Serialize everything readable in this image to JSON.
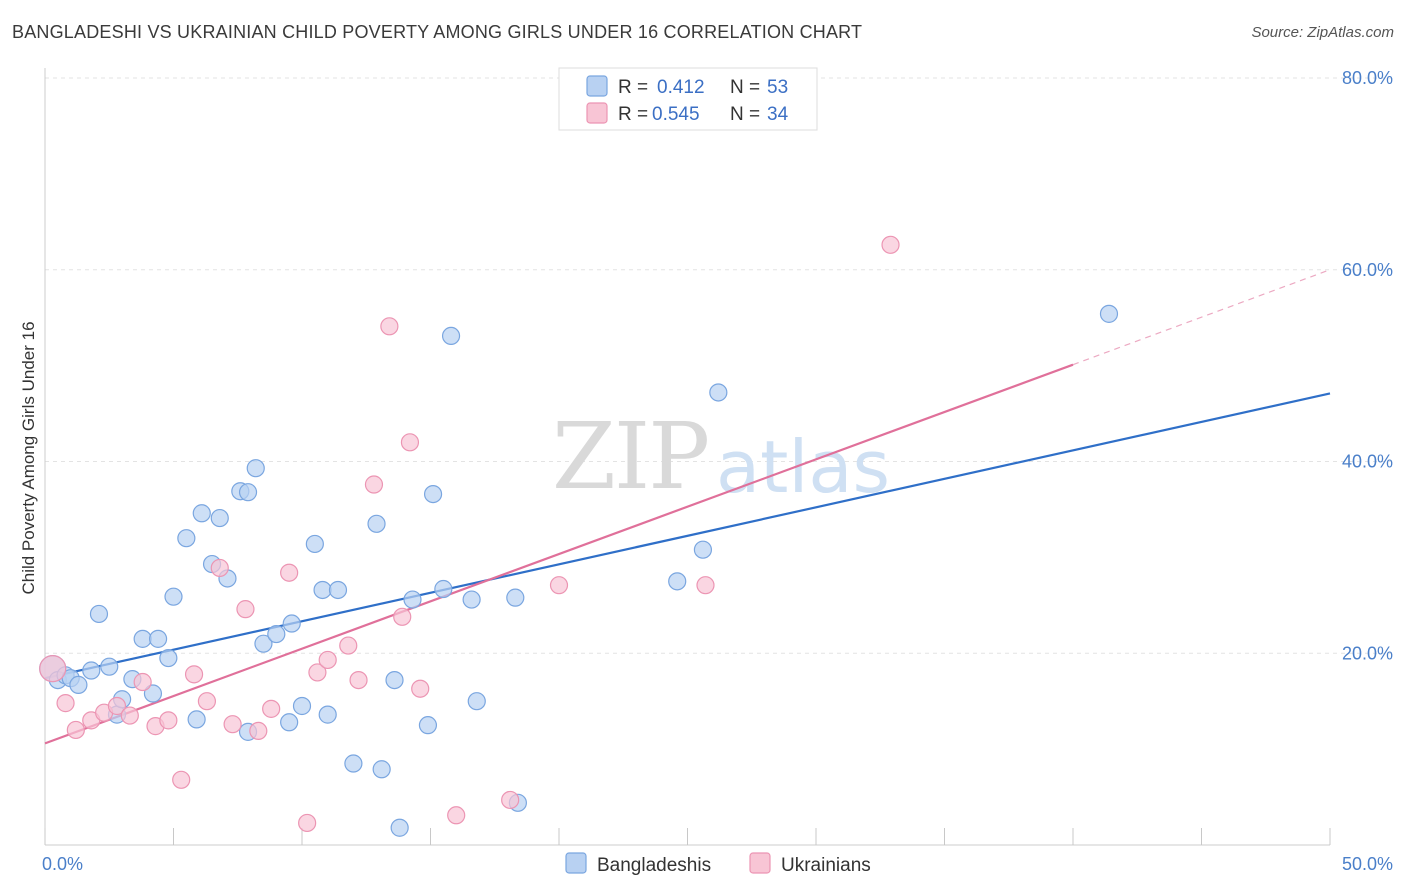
{
  "header": {
    "title": "BANGLADESHI VS UKRAINIAN CHILD POVERTY AMONG GIRLS UNDER 16 CORRELATION CHART",
    "source": "Source: ZipAtlas.com"
  },
  "watermark": {
    "part1": "ZIP",
    "part2": "atlas"
  },
  "legend": {
    "entries": [
      {
        "r_label": "R =",
        "r_value": "0.412",
        "n_label": "N =",
        "n_value": "53"
      },
      {
        "r_label": "R =",
        "r_value": "0.545",
        "n_label": "N =",
        "n_value": "34"
      }
    ]
  },
  "colors": {
    "blue_fill": "#b8d1f2",
    "blue_stroke": "#7aa6e0",
    "blue_line": "#2f6fc8",
    "pink_fill": "#f8c5d5",
    "pink_stroke": "#ec95b3",
    "pink_line": "#e0709a",
    "grid": "#e3e3e3",
    "tick_text": "#4a7fc9"
  },
  "chart_data": {
    "type": "scatter",
    "title": "BANGLADESHI VS UKRAINIAN CHILD POVERTY AMONG GIRLS UNDER 16 CORRELATION CHART",
    "xlabel": "",
    "ylabel": "Child Poverty Among Girls Under 16",
    "xlim": [
      0,
      50
    ],
    "ylim": [
      0,
      80
    ],
    "x_tick_labels": [
      "0.0%",
      "50.0%"
    ],
    "y_ticks": [
      20,
      40,
      60,
      80
    ],
    "y_tick_labels": [
      "20.0%",
      "40.0%",
      "60.0%",
      "80.0%"
    ],
    "grid": true,
    "legend_position": "top-center",
    "series": [
      {
        "name": "Bangladeshis",
        "color": "#b8d1f2",
        "r": 0.412,
        "n": 53,
        "trend": {
          "x": [
            0,
            50
          ],
          "y": [
            17.4,
            47.1
          ]
        },
        "points": [
          [
            0.3,
            18.4
          ],
          [
            0.5,
            17.2
          ],
          [
            0.8,
            17.7
          ],
          [
            1.0,
            17.4
          ],
          [
            1.3,
            16.7
          ],
          [
            1.8,
            18.2
          ],
          [
            2.1,
            24.1
          ],
          [
            2.5,
            18.6
          ],
          [
            2.8,
            13.6
          ],
          [
            3.0,
            15.2
          ],
          [
            3.4,
            17.3
          ],
          [
            3.8,
            21.5
          ],
          [
            4.2,
            15.8
          ],
          [
            4.4,
            21.5
          ],
          [
            4.8,
            19.5
          ],
          [
            5.0,
            25.9
          ],
          [
            5.5,
            32.0
          ],
          [
            5.9,
            13.1
          ],
          [
            6.1,
            34.6
          ],
          [
            6.5,
            29.3
          ],
          [
            6.8,
            34.1
          ],
          [
            7.1,
            27.8
          ],
          [
            7.6,
            36.9
          ],
          [
            7.9,
            36.8
          ],
          [
            7.9,
            11.8
          ],
          [
            8.2,
            39.3
          ],
          [
            8.5,
            21.0
          ],
          [
            9.0,
            22.0
          ],
          [
            9.5,
            12.8
          ],
          [
            9.6,
            23.1
          ],
          [
            10.0,
            14.5
          ],
          [
            10.5,
            31.4
          ],
          [
            10.8,
            26.6
          ],
          [
            11.0,
            13.6
          ],
          [
            11.4,
            26.6
          ],
          [
            12.0,
            8.5
          ],
          [
            12.9,
            33.5
          ],
          [
            13.1,
            7.9
          ],
          [
            13.6,
            17.2
          ],
          [
            13.8,
            1.8
          ],
          [
            14.3,
            25.6
          ],
          [
            14.9,
            12.5
          ],
          [
            15.1,
            36.6
          ],
          [
            15.5,
            26.7
          ],
          [
            15.8,
            53.1
          ],
          [
            16.6,
            25.6
          ],
          [
            16.8,
            15.0
          ],
          [
            18.3,
            25.8
          ],
          [
            18.4,
            4.4
          ],
          [
            24.6,
            27.5
          ],
          [
            25.6,
            30.8
          ],
          [
            26.2,
            47.2
          ],
          [
            41.4,
            55.4
          ]
        ]
      },
      {
        "name": "Ukrainians",
        "color": "#f8c5d5",
        "r": 0.545,
        "n": 34,
        "trend": {
          "x": [
            0,
            40
          ],
          "y": [
            10.6,
            50.1
          ]
        },
        "trend_dashed_extension": {
          "x": [
            40,
            50
          ],
          "y": [
            50.1,
            60.0
          ]
        },
        "points": [
          [
            0.3,
            18.4
          ],
          [
            0.8,
            14.8
          ],
          [
            1.2,
            12.0
          ],
          [
            1.8,
            13.0
          ],
          [
            2.3,
            13.8
          ],
          [
            2.8,
            14.5
          ],
          [
            3.3,
            13.5
          ],
          [
            3.8,
            17.0
          ],
          [
            4.3,
            12.4
          ],
          [
            4.8,
            13.0
          ],
          [
            5.3,
            6.8
          ],
          [
            5.8,
            17.8
          ],
          [
            6.3,
            15.0
          ],
          [
            6.8,
            28.9
          ],
          [
            7.3,
            12.6
          ],
          [
            7.8,
            24.6
          ],
          [
            8.3,
            11.9
          ],
          [
            8.8,
            14.2
          ],
          [
            9.5,
            28.4
          ],
          [
            10.2,
            2.3
          ],
          [
            10.6,
            18.0
          ],
          [
            11.0,
            19.3
          ],
          [
            11.8,
            20.8
          ],
          [
            12.2,
            17.2
          ],
          [
            12.8,
            37.6
          ],
          [
            13.4,
            54.1
          ],
          [
            13.9,
            23.8
          ],
          [
            14.2,
            42.0
          ],
          [
            14.6,
            16.3
          ],
          [
            16.0,
            3.1
          ],
          [
            18.1,
            4.7
          ],
          [
            20.0,
            27.1
          ],
          [
            25.7,
            27.1
          ],
          [
            32.9,
            62.6
          ]
        ]
      }
    ]
  }
}
